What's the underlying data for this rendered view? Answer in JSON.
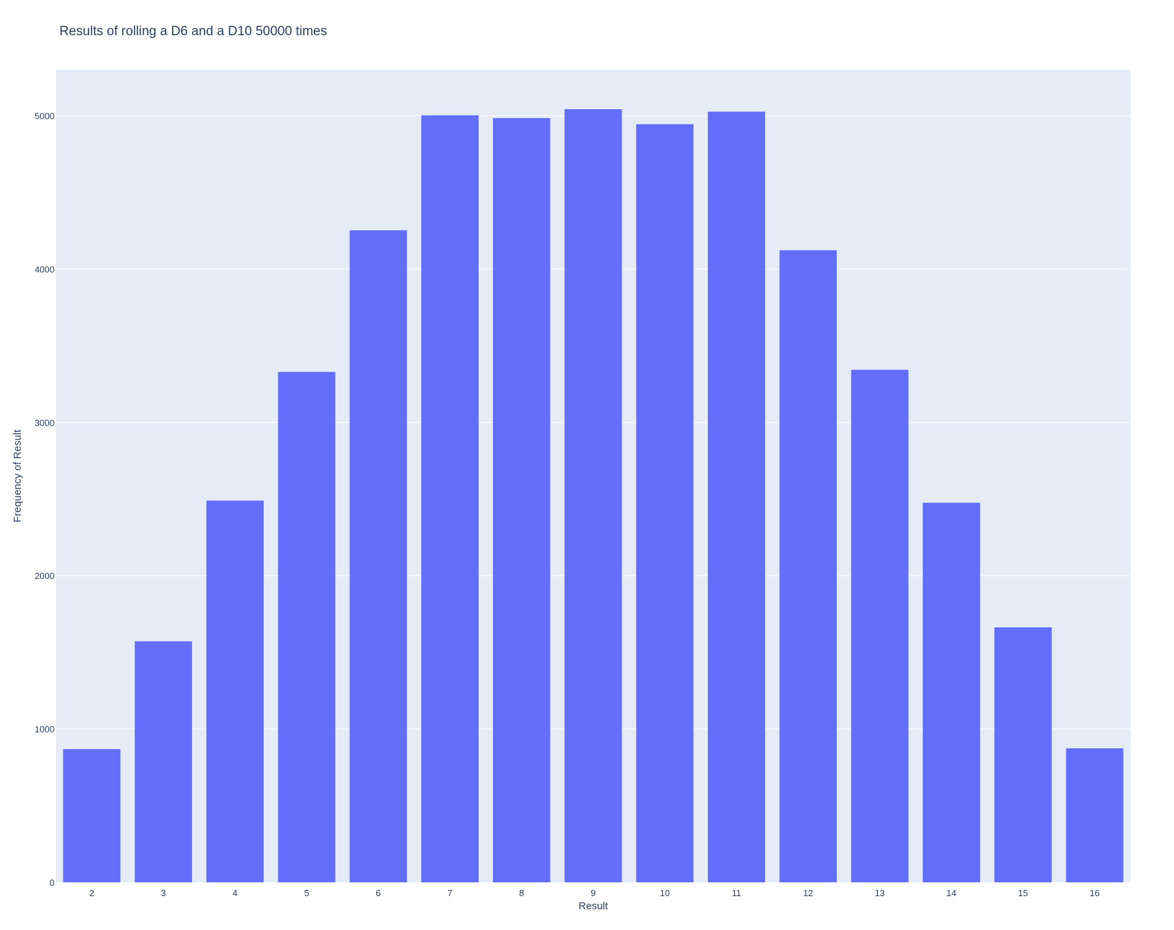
{
  "chart_data": {
    "type": "bar",
    "title": "Results of rolling a D6 and a D10 50000 times",
    "xlabel": "Result",
    "ylabel": "Frequency of Result",
    "categories": [
      "2",
      "3",
      "4",
      "5",
      "6",
      "7",
      "8",
      "9",
      "10",
      "11",
      "12",
      "13",
      "14",
      "15",
      "16"
    ],
    "series": [
      {
        "values": [
          869,
          1572,
          2490,
          3329,
          4253,
          5003,
          4985,
          5043,
          4945,
          5027,
          4123,
          3343,
          2476,
          1663,
          874
        ]
      }
    ],
    "ylim": [
      0,
      5300
    ],
    "yticks": [
      0,
      1000,
      2000,
      3000,
      4000,
      5000
    ],
    "grid": true,
    "legend": "none",
    "colors": {
      "bar": "#636efa",
      "plot_bg": "#e5ecf6",
      "grid": "#ffffff",
      "text": "#2a3f5f"
    }
  }
}
